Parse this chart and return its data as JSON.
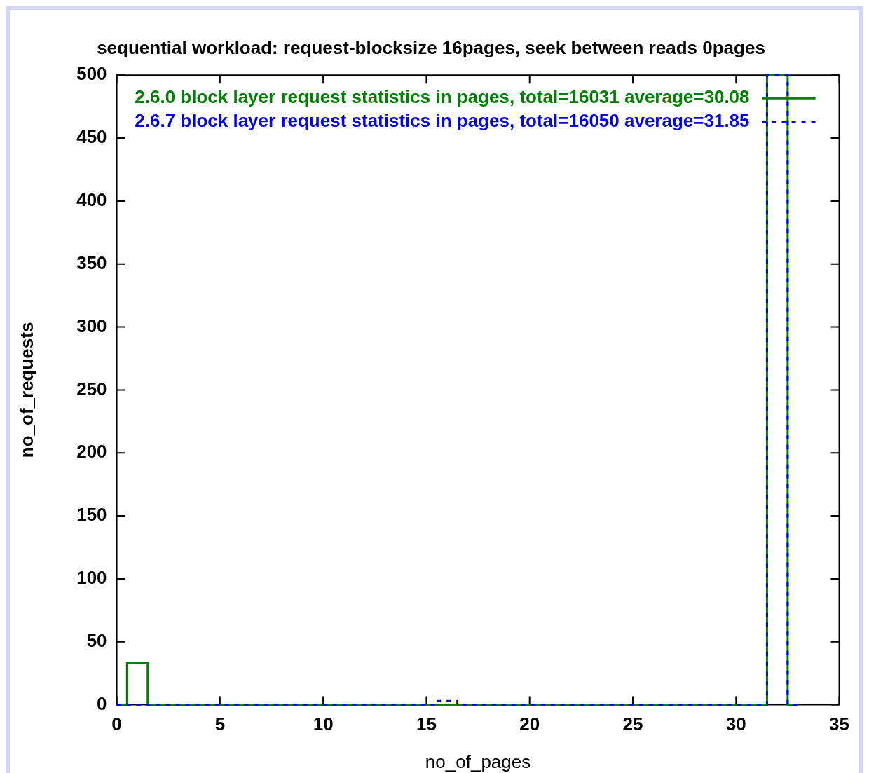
{
  "chart_data": {
    "type": "step",
    "title": "sequential workload: request-blocksize 16pages, seek between reads 0pages",
    "xlabel": "no_of_pages",
    "ylabel": "no_of_requests",
    "x": [
      0,
      1,
      2,
      3,
      4,
      5,
      6,
      7,
      8,
      9,
      10,
      11,
      12,
      13,
      14,
      15,
      16,
      17,
      18,
      19,
      20,
      21,
      22,
      23,
      24,
      25,
      26,
      27,
      28,
      29,
      30,
      31,
      32,
      33
    ],
    "series": [
      {
        "name": "2.6.0 block layer request statistics in pages, total=16031 average=30.08",
        "color": "#008000",
        "line_style": "solid",
        "values": [
          0,
          33,
          0,
          0,
          0,
          0,
          0,
          0,
          0,
          0,
          0,
          0,
          0,
          0,
          0,
          0,
          0,
          0,
          0,
          0,
          0,
          0,
          0,
          0,
          0,
          0,
          0,
          0,
          0,
          0,
          0,
          0,
          500,
          0
        ]
      },
      {
        "name": "2.6.7 block layer request statistics in pages, total=16050 average=31.85",
        "color": "#0000ff",
        "line_style": "dotted",
        "values": [
          0,
          0,
          0,
          0,
          0,
          0,
          0,
          0,
          0,
          0,
          0,
          0,
          0,
          0,
          0,
          0,
          3,
          0,
          0,
          0,
          0,
          0,
          0,
          0,
          0,
          0,
          0,
          0,
          0,
          0,
          0,
          0,
          500,
          0
        ]
      }
    ],
    "xlim": [
      0,
      35
    ],
    "xticks": [
      0,
      5,
      10,
      15,
      20,
      25,
      30,
      35
    ],
    "ylim": [
      0,
      500
    ],
    "yticks": [
      0,
      50,
      100,
      150,
      200,
      250,
      300,
      350,
      400,
      450,
      500
    ],
    "legend": "top right"
  }
}
